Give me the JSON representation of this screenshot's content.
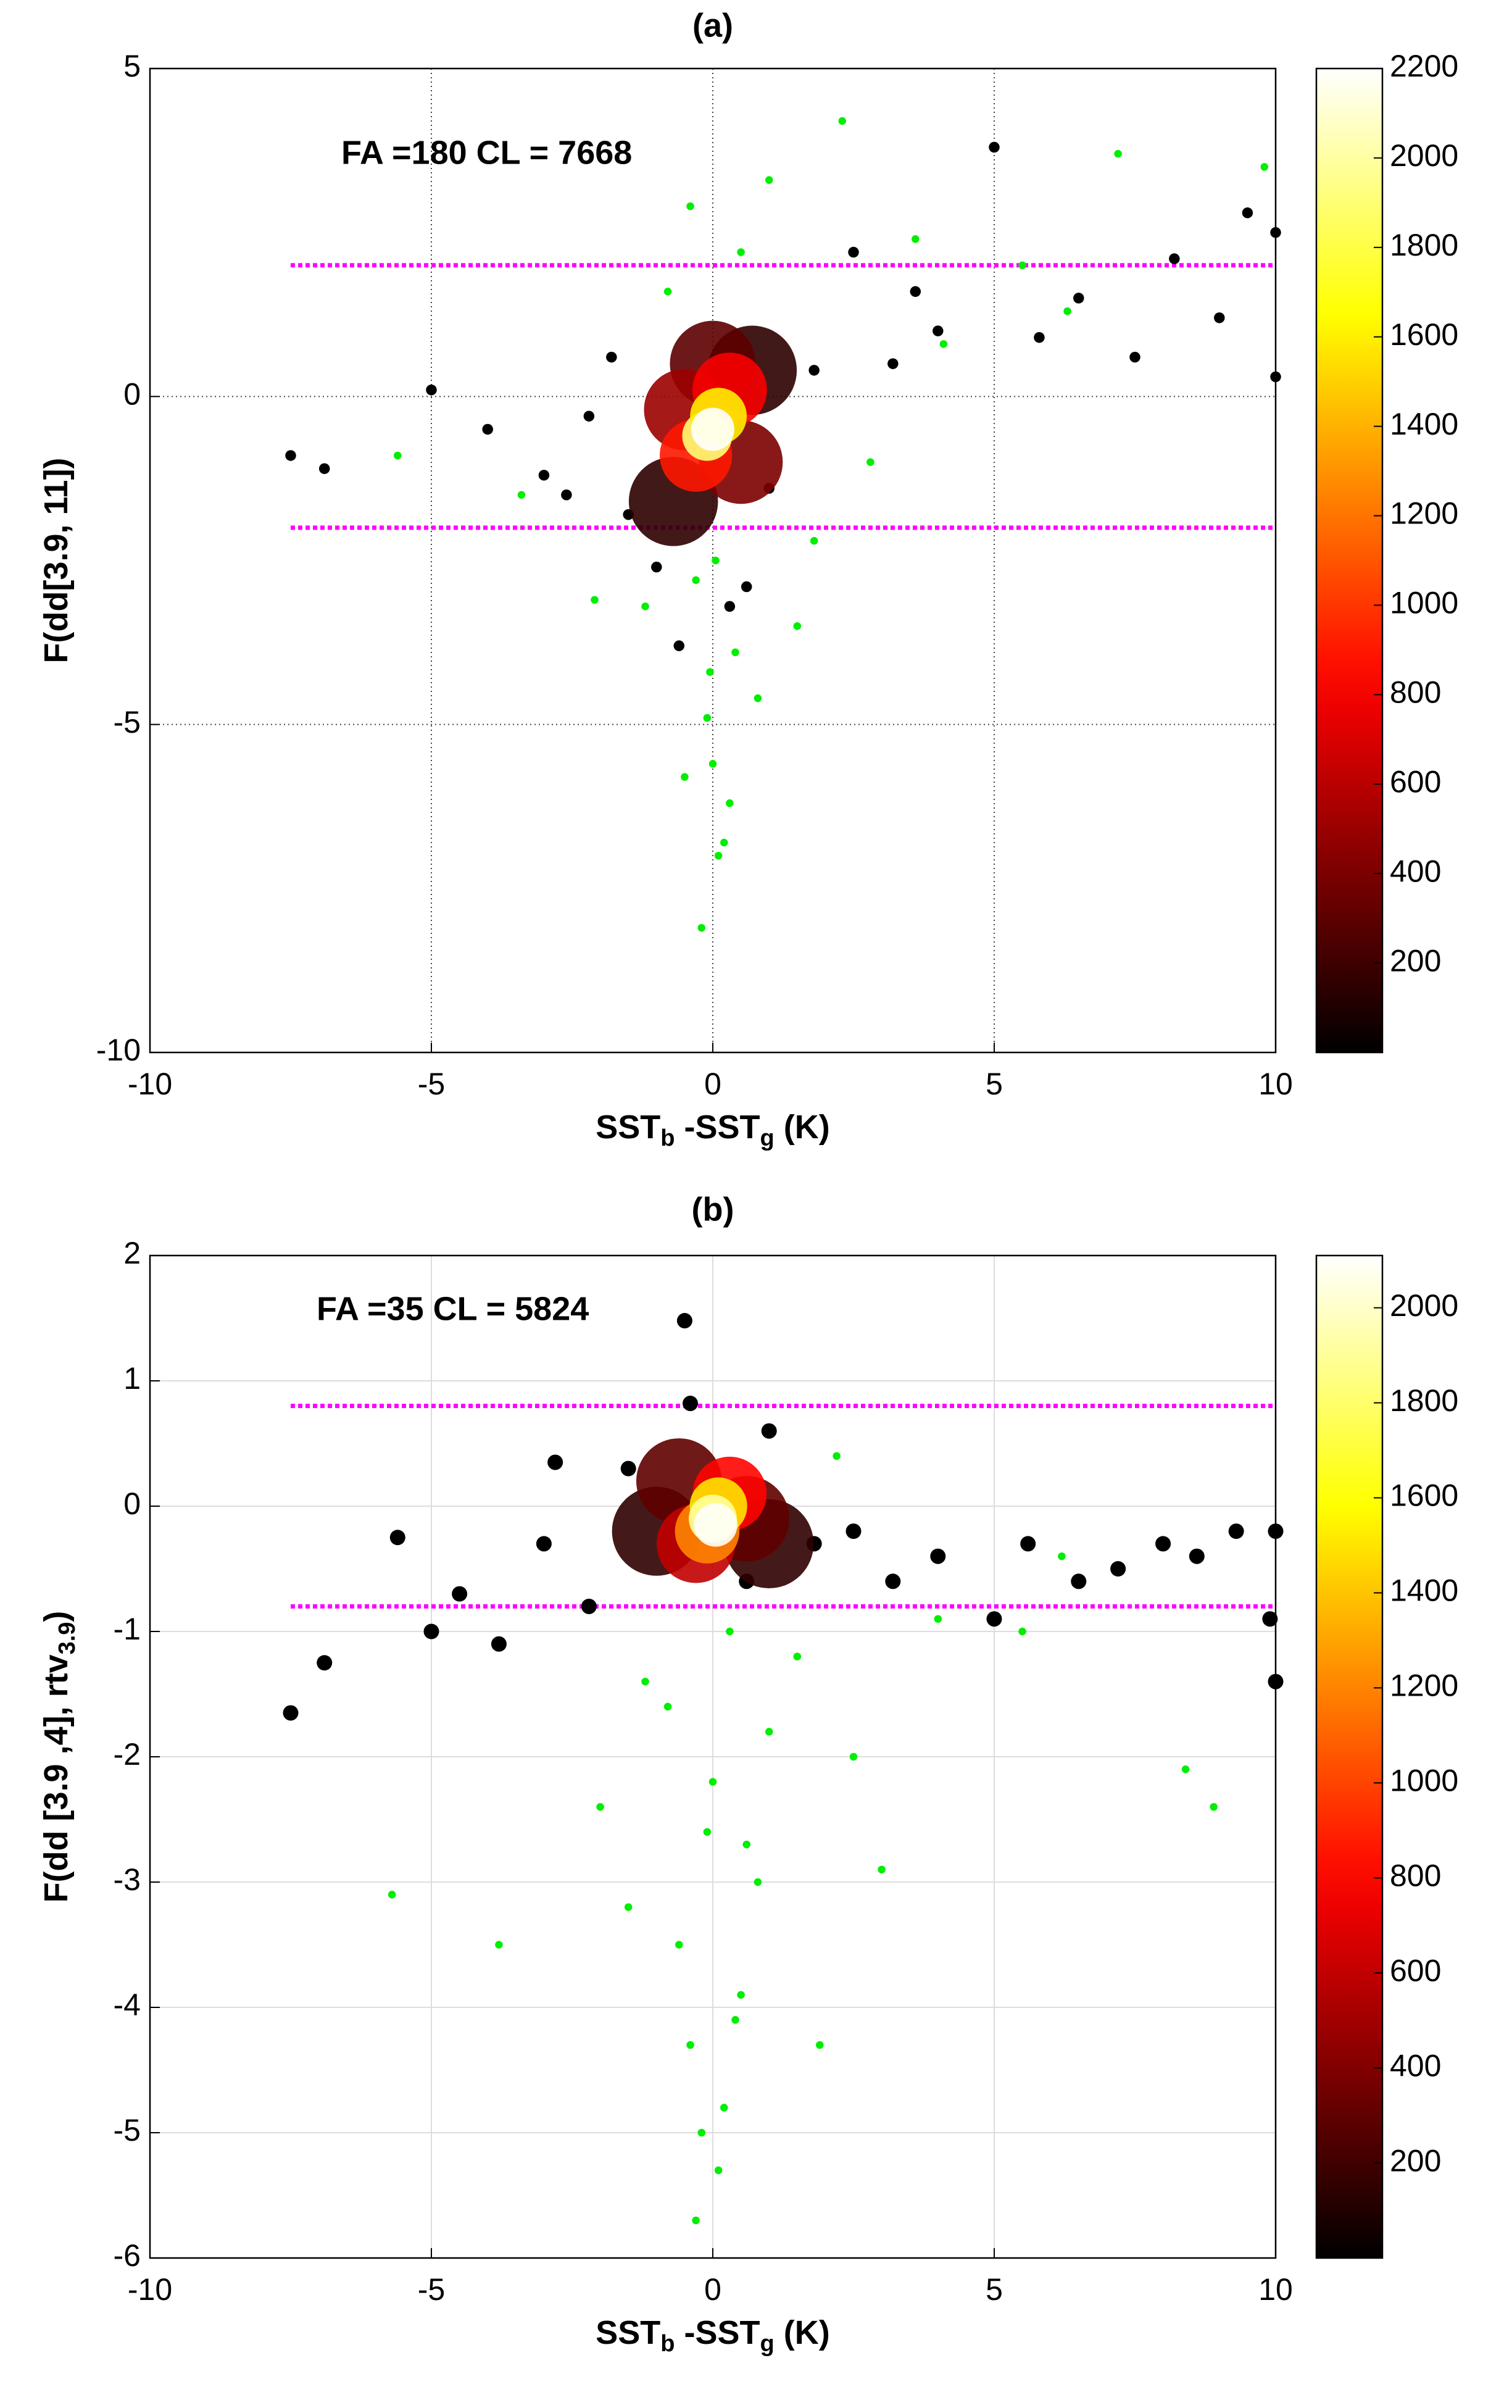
{
  "chart_data": [
    {
      "type": "scatter",
      "title": "(a)",
      "annotation": "FA =180  CL = 7668",
      "x_label": [
        {
          "text": "SST",
          "sub": false
        },
        {
          "text": "b",
          "sub": true
        },
        {
          "text": " -SST",
          "sub": false
        },
        {
          "text": "g",
          "sub": true
        },
        {
          "text": " (K)",
          "sub": false
        }
      ],
      "y_label": [
        {
          "text": "F(dd[3.9, 11])",
          "sub": false
        }
      ],
      "xlim": [
        -10,
        10
      ],
      "xticks": [
        -10,
        -5,
        0,
        5,
        10
      ],
      "ylim": [
        -10,
        5
      ],
      "yticks": [
        -10,
        -5,
        0,
        5
      ],
      "grid": "dotted",
      "colormap": "hot",
      "clim": [
        0,
        2200
      ],
      "cticks": [
        200,
        400,
        600,
        800,
        1000,
        1200,
        1400,
        1600,
        1800,
        2000,
        2200
      ],
      "hlines": {
        "values": [
          2,
          -2
        ],
        "xrange": [
          -7.5,
          10
        ],
        "color": "#ff00ff"
      },
      "series": [
        {
          "color": "#00ee00",
          "marker_size": 2.5,
          "x": [
            -0.2,
            0.1,
            0.3,
            -0.5,
            0.8,
            -1.2,
            1.5,
            -0.1,
            0.0,
            0.2,
            -0.3,
            0.4,
            2.3,
            3.6,
            5.5,
            7.2,
            -3.4,
            -5.6,
            -0.4,
            1.0,
            0.5,
            -0.8,
            0.05,
            -0.05,
            2.8,
            4.1,
            9.8,
            -2.1,
            1.8,
            6.3
          ],
          "values": [
            -8.1,
            -7.0,
            -6.2,
            -5.8,
            -4.6,
            -3.2,
            -3.5,
            -4.9,
            -5.6,
            -6.8,
            -2.8,
            -3.9,
            4.2,
            2.4,
            2.0,
            3.7,
            -1.5,
            -0.9,
            2.9,
            3.3,
            2.2,
            1.6,
            -2.5,
            -4.2,
            -1.0,
            0.8,
            3.5,
            -3.1,
            -2.2,
            1.3
          ]
        },
        {
          "color": "#000000",
          "marker_size": 3.5,
          "x": [
            -7.5,
            -6.9,
            -5.0,
            -4.0,
            -3.0,
            -2.2,
            -1.5,
            -1.0,
            1.0,
            1.8,
            2.5,
            3.2,
            4.0,
            5.0,
            5.8,
            6.5,
            7.5,
            8.2,
            9.0,
            10.0,
            -0.6,
            0.6,
            -2.6,
            3.6,
            9.5,
            10.0,
            -1.8,
            0.3
          ],
          "values": [
            -0.9,
            -1.1,
            0.1,
            -0.5,
            -1.2,
            -0.3,
            -1.8,
            -2.6,
            -1.4,
            0.4,
            2.2,
            0.5,
            1.0,
            3.8,
            0.9,
            1.5,
            0.6,
            2.1,
            1.2,
            2.5,
            -3.8,
            -2.9,
            -1.5,
            1.6,
            2.8,
            0.3,
            0.6,
            -3.2
          ]
        }
      ],
      "density": {
        "x": [
          -0.7,
          0.7,
          0,
          -0.5,
          0.5,
          -0.3,
          0.3,
          -0.1,
          0.1,
          0
        ],
        "values": [
          -1.6,
          0.4,
          0.5,
          -0.2,
          -1.0,
          -0.9,
          0.1,
          -0.6,
          -0.3,
          -0.5
        ],
        "z": [
          150,
          150,
          300,
          500,
          400,
          900,
          800,
          1900,
          1600,
          2200
        ]
      }
    },
    {
      "type": "scatter",
      "title": "(b)",
      "annotation": "FA =35  CL = 5824",
      "x_label": [
        {
          "text": "SST",
          "sub": false
        },
        {
          "text": "b",
          "sub": true
        },
        {
          "text": " -SST",
          "sub": false
        },
        {
          "text": "g",
          "sub": true
        },
        {
          "text": " (K)",
          "sub": false
        }
      ],
      "y_label": [
        {
          "text": "F(dd [3.9 ,4], rtv",
          "sub": false
        },
        {
          "text": "3.9",
          "sub": true
        },
        {
          "text": ")",
          "sub": false
        }
      ],
      "xlim": [
        -10,
        10
      ],
      "xticks": [
        -10,
        -5,
        0,
        5,
        10
      ],
      "ylim": [
        -6,
        2
      ],
      "yticks": [
        -6,
        -5,
        -4,
        -3,
        -2,
        -1,
        0,
        1,
        2
      ],
      "grid": "solid",
      "colormap": "hot",
      "clim": [
        0,
        2110
      ],
      "cticks": [
        200,
        400,
        600,
        800,
        1000,
        1200,
        1400,
        1600,
        1800,
        2000
      ],
      "hlines": {
        "values": [
          0.8,
          -0.8
        ],
        "xrange": [
          -7.5,
          10
        ],
        "color": "#ff00ff"
      },
      "series": [
        {
          "color": "#00ee00",
          "marker_size": 2.5,
          "x": [
            -0.3,
            0.1,
            0.2,
            -0.4,
            0.5,
            -0.6,
            0.8,
            -0.1,
            0.0,
            1.0,
            -1.2,
            1.5,
            -2.0,
            2.5,
            3.0,
            4.0,
            -3.8,
            -5.7,
            8.4,
            8.9,
            0.3,
            -0.8,
            0.6,
            -1.5,
            1.9,
            5.5,
            6.2,
            -0.2,
            0.4,
            2.2
          ],
          "values": [
            -5.7,
            -5.3,
            -4.8,
            -4.3,
            -3.9,
            -3.5,
            -3.0,
            -2.6,
            -2.2,
            -1.8,
            -1.4,
            -1.2,
            -2.4,
            -2.0,
            -2.9,
            -0.9,
            -3.5,
            -3.1,
            -2.1,
            -2.4,
            -1.0,
            -1.6,
            -2.7,
            -3.2,
            -4.3,
            -1.0,
            -0.4,
            -5.0,
            -4.1,
            0.4
          ]
        },
        {
          "color": "#000000",
          "marker_size": 5,
          "x": [
            -7.5,
            -6.9,
            -5.6,
            -5.0,
            -4.5,
            -3.8,
            -3.0,
            -2.2,
            -1.5,
            -0.5,
            -0.4,
            1.0,
            1.8,
            2.5,
            3.2,
            4.0,
            5.0,
            5.6,
            6.5,
            7.2,
            8.0,
            8.6,
            9.3,
            10.0,
            10.0,
            9.9,
            -2.8,
            0.6
          ],
          "values": [
            -1.65,
            -1.25,
            -0.25,
            -1.0,
            -0.7,
            -1.1,
            -0.3,
            -0.8,
            0.3,
            1.48,
            0.82,
            0.6,
            -0.3,
            -0.2,
            -0.6,
            -0.4,
            -0.9,
            -0.3,
            -0.6,
            -0.5,
            -0.3,
            -0.4,
            -0.2,
            -1.4,
            -0.2,
            -0.9,
            0.35,
            -0.6
          ]
        }
      ],
      "density": {
        "x": [
          -1.0,
          1.0,
          -0.6,
          0.6,
          -0.3,
          0.3,
          -0.1,
          0.1,
          0.0,
          0.05
        ],
        "values": [
          -0.2,
          -0.3,
          0.2,
          -0.1,
          -0.3,
          0.1,
          -0.2,
          0.0,
          -0.1,
          -0.15
        ],
        "z": [
          150,
          150,
          300,
          300,
          600,
          800,
          1200,
          1500,
          1900,
          2100
        ]
      }
    }
  ]
}
